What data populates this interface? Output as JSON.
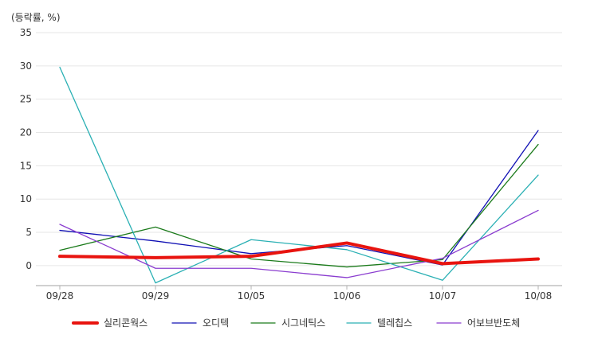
{
  "chart_data": {
    "type": "line",
    "unit_label": "(등락률, %)",
    "categories": [
      "09/28",
      "09/29",
      "10/05",
      "10/06",
      "10/07",
      "10/08"
    ],
    "ylim": [
      -3,
      35
    ],
    "yticks": [
      0,
      5,
      10,
      15,
      20,
      25,
      30,
      35
    ],
    "grid": true,
    "legend_position": "bottom",
    "series": [
      {
        "name": "실리콘웍스",
        "color": "#e8140f",
        "emphasis": true,
        "values": [
          1.4,
          1.2,
          1.4,
          3.4,
          0.3,
          1.0
        ]
      },
      {
        "name": "오디텍",
        "color": "#1010b4",
        "emphasis": false,
        "values": [
          5.3,
          3.7,
          1.8,
          3.0,
          0.1,
          20.3
        ]
      },
      {
        "name": "시그네틱스",
        "color": "#1a7a1a",
        "emphasis": false,
        "values": [
          2.3,
          5.8,
          1.0,
          -0.2,
          0.9,
          18.2
        ]
      },
      {
        "name": "텔레칩스",
        "color": "#2ab0b4",
        "emphasis": false,
        "values": [
          29.8,
          -2.6,
          3.9,
          2.4,
          -2.2,
          13.6
        ]
      },
      {
        "name": "어보브반도체",
        "color": "#8a3ccf",
        "emphasis": false,
        "values": [
          6.2,
          -0.4,
          -0.4,
          -1.8,
          1.1,
          8.3
        ]
      }
    ]
  }
}
